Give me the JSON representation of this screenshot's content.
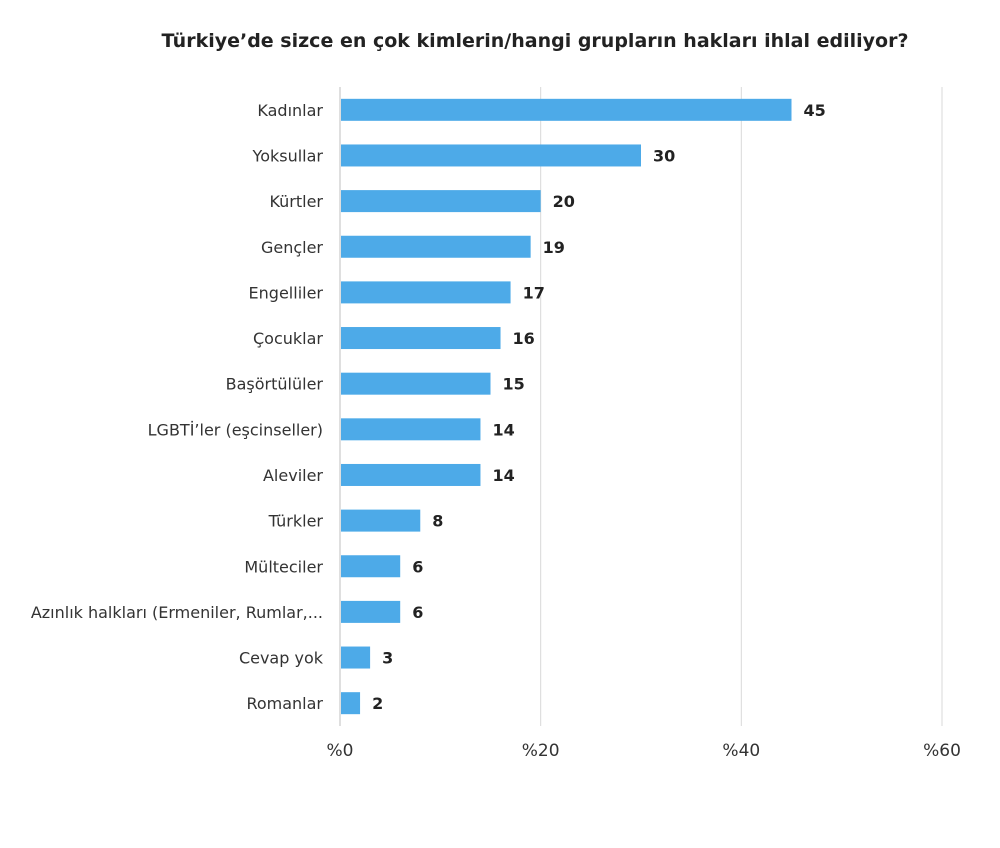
{
  "colors": {
    "bar": "#4DAAE8",
    "grid": "#d9d9d9",
    "axis": "#bfbfbf"
  },
  "chart_data": {
    "type": "bar",
    "orientation": "horizontal",
    "title": "Türkiye’de sizce en çok kimlerin/hangi grupların hakları ihlal ediliyor?",
    "categories": [
      "Kadınlar",
      "Yoksullar",
      "Kürtler",
      "Gençler",
      "Engelliler",
      "Çocuklar",
      "Başörtülüler",
      "LGBTİ’ler (eşcinseller)",
      "Aleviler",
      "Türkler",
      "Mülteciler",
      "Azınlık halkları (Ermeniler, Rumlar,...",
      "Cevap yok",
      "Romanlar"
    ],
    "values": [
      45,
      30,
      20,
      19,
      17,
      16,
      15,
      14,
      14,
      8,
      6,
      6,
      3,
      2
    ],
    "data_labels": [
      "45",
      "30",
      "20",
      "19",
      "17",
      "16",
      "15",
      "14",
      "14",
      "8",
      "6",
      "6",
      "3",
      "2"
    ],
    "xlim": [
      0,
      60
    ],
    "xticks": [
      0,
      20,
      40,
      60
    ],
    "xtick_labels": [
      "%0",
      "%20",
      "%40",
      "%60"
    ],
    "grid": true,
    "legend": "none"
  }
}
